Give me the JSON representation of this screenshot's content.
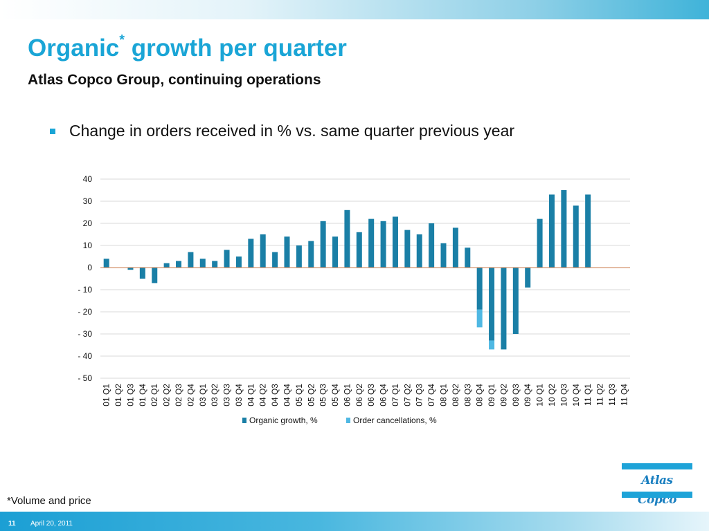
{
  "slide": {
    "title_main": "Organic",
    "title_sup": "*",
    "title_rest": " growth per quarter",
    "subtitle": "Atlas Copco Group, continuing operations",
    "bullet": "Change in orders received in % vs. same quarter previous year",
    "footnote": "*Volume and price",
    "page_number": "11",
    "date": "April 20, 2011",
    "logo_text": "Atlas Copco"
  },
  "colors": {
    "title": "#1aa5d6",
    "organic_growth": "#1a7fa6",
    "order_cancellations": "#4fb8e3",
    "zero_line": "#c9784a",
    "grid": "#d9d9d9"
  },
  "chart_data": {
    "type": "bar",
    "title": "",
    "xlabel": "",
    "ylabel": "",
    "ylim": [
      -50,
      40
    ],
    "yticks": [
      40,
      30,
      20,
      10,
      0,
      -10,
      -20,
      -30,
      -40,
      -50
    ],
    "ytick_labels": [
      "40",
      "30",
      "20",
      "10",
      "0",
      "- 10",
      "- 20",
      "- 30",
      "- 40",
      "- 50"
    ],
    "grid": true,
    "legend_position": "bottom",
    "categories": [
      "01 Q1",
      "01 Q2",
      "01 Q3",
      "01 Q4",
      "02 Q1",
      "02 Q2",
      "02 Q3",
      "02 Q4",
      "03 Q1",
      "03 Q2",
      "03 Q3",
      "03 Q4",
      "04 Q1",
      "04 Q2",
      "04 Q3",
      "04 Q4",
      "05 Q1",
      "05 Q2",
      "05 Q3",
      "05 Q4",
      "06 Q1",
      "06 Q2",
      "06 Q3",
      "06 Q4",
      "07 Q1",
      "07 Q2",
      "07 Q3",
      "07 Q4",
      "08 Q1",
      "08 Q2",
      "08 Q3",
      "08 Q4",
      "09 Q1",
      "09 Q2",
      "09 Q3",
      "09 Q4",
      "10 Q1",
      "10 Q2",
      "10 Q3",
      "10 Q4",
      "11 Q1",
      "11 Q2",
      "11 Q3",
      "11 Q4"
    ],
    "series": [
      {
        "name": "Organic growth, %",
        "values": [
          4,
          0,
          -1,
          -5,
          -7,
          2,
          3,
          7,
          4,
          3,
          8,
          5,
          13,
          15,
          7,
          14,
          10,
          12,
          21,
          14,
          26,
          16,
          22,
          21,
          23,
          17,
          15,
          20,
          11,
          18,
          9,
          -19,
          -33,
          -37,
          -30,
          -9,
          22,
          33,
          35,
          28,
          33,
          null,
          null,
          null
        ]
      },
      {
        "name": "Order cancellations, %",
        "values": [
          0,
          0,
          0,
          0,
          0,
          0,
          0,
          0,
          0,
          0,
          0,
          0,
          0,
          0,
          0,
          0,
          0,
          0,
          0,
          0,
          0,
          0,
          0,
          0,
          0,
          0,
          0,
          0,
          0,
          0,
          0,
          -8,
          -4,
          0,
          0,
          0,
          0,
          0,
          0,
          0,
          0,
          null,
          null,
          null
        ]
      }
    ]
  }
}
